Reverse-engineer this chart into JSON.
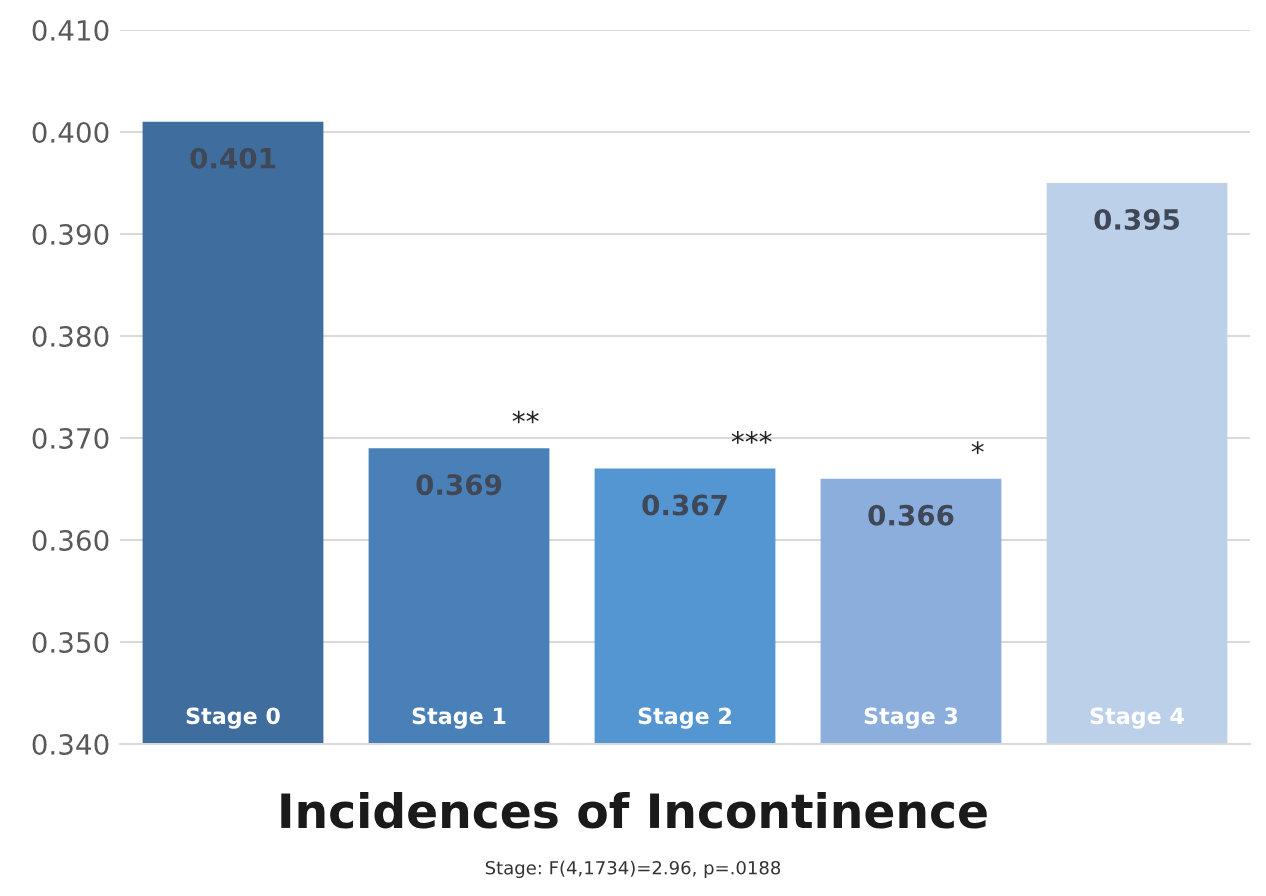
{
  "chart_data": {
    "type": "bar",
    "title": "Incidences of Incontinence",
    "categories": [
      "Stage 0",
      "Stage 1",
      "Stage 2",
      "Stage 3",
      "Stage 4"
    ],
    "values": [
      0.401,
      0.369,
      0.367,
      0.366,
      0.395
    ],
    "colors": [
      "#3f6d9e",
      "#4a80b8",
      "#5496d2",
      "#8caedc",
      "#bcd0ea"
    ],
    "ylim": [
      0.34,
      0.41
    ],
    "yticks": [
      {
        "value": 0.34,
        "label": "0.340"
      },
      {
        "value": 0.35,
        "label": "0.350"
      },
      {
        "value": 0.36,
        "label": "0.360"
      },
      {
        "value": 0.37,
        "label": "0.370"
      },
      {
        "value": 0.38,
        "label": "0.380"
      },
      {
        "value": 0.39,
        "label": "0.390"
      },
      {
        "value": 0.4,
        "label": "0.400"
      },
      {
        "value": 0.41,
        "label": "0.410"
      }
    ],
    "grid": "y",
    "data_labels": true,
    "annotations": [
      {
        "text": "**",
        "x": "Stage 1",
        "y": 0.369
      },
      {
        "text": "***",
        "x": "Stage 2",
        "y": 0.367
      },
      {
        "text": "*",
        "x": "Stage 3",
        "y": 0.366
      },
      "Stage: F(4,1734)=2.96, p=.0188"
    ]
  }
}
